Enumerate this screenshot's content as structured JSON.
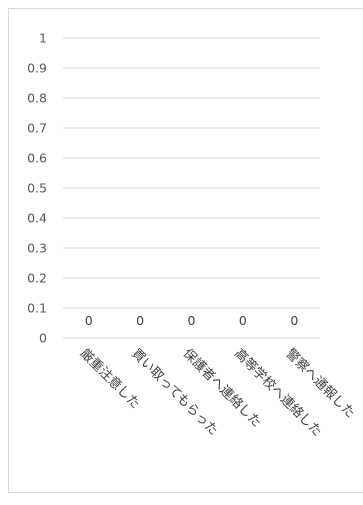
{
  "chart_data": {
    "type": "bar",
    "categories": [
      "厳重注意した",
      "買い取ってもらった",
      "保護者へ連絡した",
      "高等学校へ連絡した",
      "警察へ通報した"
    ],
    "series": [
      {
        "values": [
          0,
          0,
          0,
          0,
          0
        ]
      }
    ],
    "data_labels": [
      "0",
      "0",
      "0",
      "0",
      "0"
    ],
    "y_ticks": [
      "0",
      "0.1",
      "0.2",
      "0.3",
      "0.4",
      "0.5",
      "0.6",
      "0.7",
      "0.8",
      "0.9",
      "1"
    ],
    "ylim": [
      0,
      1
    ],
    "grid": true,
    "gridline_color": "#d9d9d9",
    "title": "",
    "xlabel": "",
    "ylabel": ""
  }
}
